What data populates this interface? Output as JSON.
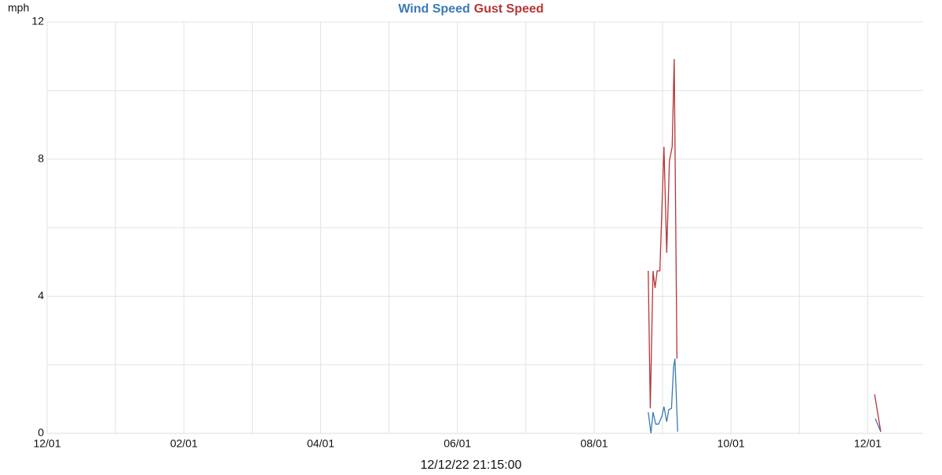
{
  "chart_data": {
    "type": "line",
    "y_label": "mph",
    "x_label": "12/12/22 21:15:00",
    "xlim": [
      0,
      12.81
    ],
    "xticks": [
      {
        "value": 0,
        "label": "12/01"
      },
      {
        "value": 2,
        "label": "02/01"
      },
      {
        "value": 4,
        "label": "04/01"
      },
      {
        "value": 6,
        "label": "06/01"
      },
      {
        "value": 8,
        "label": "08/01"
      },
      {
        "value": 10,
        "label": "10/01"
      },
      {
        "value": 12,
        "label": "12/01"
      }
    ],
    "x_minor_ticks": [
      1,
      3,
      5,
      7,
      9,
      11
    ],
    "ylim": [
      0,
      12
    ],
    "yticks": [
      0,
      4,
      8,
      12
    ],
    "y_minor_ticks": [
      2,
      6,
      10
    ],
    "grid": true,
    "series": [
      {
        "name": "Wind Speed",
        "color": "#3a7ab5",
        "x": [
          8.79,
          8.83,
          8.86,
          8.9,
          8.94,
          8.99,
          9.02,
          9.06,
          9.09,
          9.13,
          9.16,
          9.18,
          9.22,
          null,
          12.11,
          12.19
        ],
        "values": [
          0.62,
          0,
          0.62,
          0.27,
          0.27,
          0.5,
          0.78,
          0.34,
          0.69,
          0.73,
          1.92,
          2.18,
          0.05,
          null,
          0.43,
          0.05
        ]
      },
      {
        "name": "Gust Speed",
        "color": "#b63535",
        "x": [
          8.79,
          8.82,
          8.86,
          8.89,
          8.92,
          8.96,
          9.02,
          9.06,
          9.1,
          9.14,
          9.17,
          9.21,
          null,
          12.1,
          12.19
        ],
        "values": [
          4.74,
          0.73,
          4.74,
          4.24,
          4.74,
          4.74,
          8.36,
          5.27,
          7.95,
          8.36,
          10.92,
          2.18,
          null,
          1.14,
          0.05
        ]
      }
    ]
  }
}
